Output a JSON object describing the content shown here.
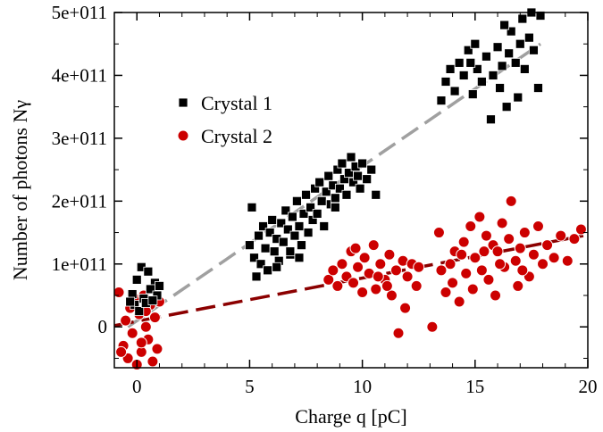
{
  "chart_data": {
    "type": "scatter",
    "title": "",
    "xlabel": "Charge q [pC]",
    "ylabel": "Number of photons Nγ",
    "xlim": [
      -1.0,
      20.0
    ],
    "ylim": [
      -65000000000.0,
      500000000000.0
    ],
    "x_ticks": [
      {
        "value": 0,
        "label": "0"
      },
      {
        "value": 5,
        "label": "5"
      },
      {
        "value": 10,
        "label": "10"
      },
      {
        "value": 15,
        "label": "15"
      },
      {
        "value": 20,
        "label": "20"
      }
    ],
    "y_ticks": [
      {
        "value": 0,
        "label": "0"
      },
      {
        "value": 100000000000.0,
        "label": "1e+011"
      },
      {
        "value": 200000000000.0,
        "label": "2e+011"
      },
      {
        "value": 300000000000.0,
        "label": "3e+011"
      },
      {
        "value": 400000000000.0,
        "label": "4e+011"
      },
      {
        "value": 500000000000.0,
        "label": "5e+011"
      }
    ],
    "grid": false,
    "legend_position": "upper-left",
    "series": [
      {
        "name": "Crystal 1",
        "marker": "square",
        "color": "#000000",
        "points": [
          [
            -0.2,
            52000000000.0
          ],
          [
            0.0,
            75000000000.0
          ],
          [
            0.2,
            95000000000.0
          ],
          [
            0.5,
            88000000000.0
          ],
          [
            0.8,
            70000000000.0
          ],
          [
            -0.1,
            35000000000.0
          ],
          [
            0.3,
            45000000000.0
          ],
          [
            0.6,
            60000000000.0
          ],
          [
            0.9,
            50000000000.0
          ],
          [
            0.1,
            25000000000.0
          ],
          [
            0.4,
            38000000000.0
          ],
          [
            0.7,
            42000000000.0
          ],
          [
            -0.3,
            40000000000.0
          ],
          [
            1.0,
            65000000000.0
          ],
          [
            5.0,
            130000000000.0
          ],
          [
            5.1,
            190000000000.0
          ],
          [
            5.2,
            110000000000.0
          ],
          [
            5.3,
            80000000000.0
          ],
          [
            5.4,
            145000000000.0
          ],
          [
            5.5,
            100000000000.0
          ],
          [
            5.6,
            160000000000.0
          ],
          [
            5.7,
            125000000000.0
          ],
          [
            5.8,
            90000000000.0
          ],
          [
            5.9,
            150000000000.0
          ],
          [
            6.0,
            170000000000.0
          ],
          [
            6.1,
            120000000000.0
          ],
          [
            6.2,
            140000000000.0
          ],
          [
            6.3,
            105000000000.0
          ],
          [
            6.4,
            165000000000.0
          ],
          [
            6.5,
            135000000000.0
          ],
          [
            6.6,
            185000000000.0
          ],
          [
            6.7,
            155000000000.0
          ],
          [
            6.8,
            115000000000.0
          ],
          [
            6.9,
            175000000000.0
          ],
          [
            7.0,
            145000000000.0
          ],
          [
            7.1,
            200000000000.0
          ],
          [
            7.2,
            160000000000.0
          ],
          [
            7.3,
            130000000000.0
          ],
          [
            7.4,
            180000000000.0
          ],
          [
            7.5,
            210000000000.0
          ],
          [
            7.6,
            150000000000.0
          ],
          [
            7.7,
            190000000000.0
          ],
          [
            7.8,
            170000000000.0
          ],
          [
            7.9,
            220000000000.0
          ],
          [
            8.0,
            180000000000.0
          ],
          [
            8.1,
            230000000000.0
          ],
          [
            8.2,
            200000000000.0
          ],
          [
            8.3,
            160000000000.0
          ],
          [
            8.4,
            215000000000.0
          ],
          [
            8.5,
            240000000000.0
          ],
          [
            8.6,
            195000000000.0
          ],
          [
            8.7,
            225000000000.0
          ],
          [
            8.8,
            205000000000.0
          ],
          [
            8.9,
            250000000000.0
          ],
          [
            9.0,
            220000000000.0
          ],
          [
            9.1,
            260000000000.0
          ],
          [
            9.2,
            235000000000.0
          ],
          [
            9.3,
            210000000000.0
          ],
          [
            9.4,
            245000000000.0
          ],
          [
            9.5,
            270000000000.0
          ],
          [
            9.6,
            230000000000.0
          ],
          [
            9.7,
            255000000000.0
          ],
          [
            9.8,
            240000000000.0
          ],
          [
            9.9,
            220000000000.0
          ],
          [
            10.0,
            260000000000.0
          ],
          [
            10.2,
            235000000000.0
          ],
          [
            10.4,
            250000000000.0
          ],
          [
            10.6,
            210000000000.0
          ],
          [
            6.2,
            95000000000.0
          ],
          [
            6.8,
            120000000000.0
          ],
          [
            7.2,
            110000000000.0
          ],
          [
            8.8,
            190000000000.0
          ],
          [
            13.5,
            360000000000.0
          ],
          [
            13.7,
            390000000000.0
          ],
          [
            13.9,
            410000000000.0
          ],
          [
            14.1,
            375000000000.0
          ],
          [
            14.3,
            420000000000.0
          ],
          [
            14.5,
            400000000000.0
          ],
          [
            14.7,
            440000000000.0
          ],
          [
            14.9,
            370000000000.0
          ],
          [
            15.1,
            410000000000.0
          ],
          [
            15.3,
            390000000000.0
          ],
          [
            15.5,
            430000000000.0
          ],
          [
            15.7,
            330000000000.0
          ],
          [
            15.8,
            400000000000.0
          ],
          [
            16.0,
            445000000000.0
          ],
          [
            16.1,
            380000000000.0
          ],
          [
            16.2,
            415000000000.0
          ],
          [
            16.4,
            350000000000.0
          ],
          [
            16.5,
            435000000000.0
          ],
          [
            16.6,
            470000000000.0
          ],
          [
            16.8,
            420000000000.0
          ],
          [
            16.9,
            365000000000.0
          ],
          [
            17.0,
            450000000000.0
          ],
          [
            17.1,
            490000000000.0
          ],
          [
            17.2,
            410000000000.0
          ],
          [
            17.4,
            460000000000.0
          ],
          [
            17.5,
            500000000000.0
          ],
          [
            17.6,
            440000000000.0
          ],
          [
            17.8,
            380000000000.0
          ],
          [
            17.9,
            495000000000.0
          ],
          [
            15.0,
            450000000000.0
          ],
          [
            14.8,
            420000000000.0
          ],
          [
            16.3,
            480000000000.0
          ]
        ]
      },
      {
        "name": "Crystal 2",
        "marker": "circle",
        "color": "#cc0000",
        "points": [
          [
            -0.8,
            55000000000.0
          ],
          [
            -0.6,
            -30000000000.0
          ],
          [
            -0.5,
            10000000000.0
          ],
          [
            -0.4,
            -50000000000.0
          ],
          [
            -0.3,
            30000000000.0
          ],
          [
            -0.2,
            -10000000000.0
          ],
          [
            -0.1,
            45000000000.0
          ],
          [
            0.0,
            -60000000000.0
          ],
          [
            0.1,
            20000000000.0
          ],
          [
            0.2,
            -40000000000.0
          ],
          [
            0.3,
            50000000000.0
          ],
          [
            0.4,
            0.0
          ],
          [
            0.5,
            -20000000000.0
          ],
          [
            0.6,
            35000000000.0
          ],
          [
            0.7,
            -55000000000.0
          ],
          [
            0.8,
            15000000000.0
          ],
          [
            0.9,
            -35000000000.0
          ],
          [
            1.0,
            40000000000.0
          ],
          [
            0.2,
            -25000000000.0
          ],
          [
            0.4,
            25000000000.0
          ],
          [
            -0.7,
            -40000000000.0
          ],
          [
            8.5,
            75000000000.0
          ],
          [
            8.7,
            90000000000.0
          ],
          [
            8.9,
            65000000000.0
          ],
          [
            9.1,
            100000000000.0
          ],
          [
            9.3,
            80000000000.0
          ],
          [
            9.5,
            120000000000.0
          ],
          [
            9.6,
            70000000000.0
          ],
          [
            9.8,
            95000000000.0
          ],
          [
            10.0,
            55000000000.0
          ],
          [
            10.1,
            110000000000.0
          ],
          [
            10.3,
            85000000000.0
          ],
          [
            10.5,
            130000000000.0
          ],
          [
            10.6,
            60000000000.0
          ],
          [
            10.8,
            100000000000.0
          ],
          [
            11.0,
            75000000000.0
          ],
          [
            11.2,
            115000000000.0
          ],
          [
            11.3,
            50000000000.0
          ],
          [
            11.5,
            90000000000.0
          ],
          [
            11.6,
            -10000000000.0
          ],
          [
            11.8,
            105000000000.0
          ],
          [
            11.9,
            30000000000.0
          ],
          [
            12.0,
            80000000000.0
          ],
          [
            12.2,
            100000000000.0
          ],
          [
            12.4,
            65000000000.0
          ],
          [
            12.5,
            95000000000.0
          ],
          [
            9.7,
            125000000000.0
          ],
          [
            11.1,
            65000000000.0
          ],
          [
            10.7,
            80000000000.0
          ],
          [
            13.4,
            150000000000.0
          ],
          [
            13.5,
            90000000000.0
          ],
          [
            13.7,
            55000000000.0
          ],
          [
            13.9,
            100000000000.0
          ],
          [
            14.0,
            70000000000.0
          ],
          [
            14.1,
            120000000000.0
          ],
          [
            14.3,
            40000000000.0
          ],
          [
            14.5,
            135000000000.0
          ],
          [
            14.6,
            85000000000.0
          ],
          [
            14.8,
            160000000000.0
          ],
          [
            14.9,
            60000000000.0
          ],
          [
            15.0,
            110000000000.0
          ],
          [
            15.2,
            175000000000.0
          ],
          [
            15.3,
            90000000000.0
          ],
          [
            15.5,
            145000000000.0
          ],
          [
            15.6,
            75000000000.0
          ],
          [
            15.8,
            130000000000.0
          ],
          [
            15.9,
            50000000000.0
          ],
          [
            16.0,
            120000000000.0
          ],
          [
            16.2,
            165000000000.0
          ],
          [
            16.3,
            95000000000.0
          ],
          [
            16.5,
            140000000000.0
          ],
          [
            16.6,
            200000000000.0
          ],
          [
            16.8,
            105000000000.0
          ],
          [
            16.9,
            65000000000.0
          ],
          [
            17.0,
            125000000000.0
          ],
          [
            17.2,
            150000000000.0
          ],
          [
            17.4,
            80000000000.0
          ],
          [
            17.6,
            115000000000.0
          ],
          [
            17.8,
            160000000000.0
          ],
          [
            18.0,
            100000000000.0
          ],
          [
            18.2,
            130000000000.0
          ],
          [
            18.5,
            110000000000.0
          ],
          [
            18.8,
            145000000000.0
          ],
          [
            19.1,
            105000000000.0
          ],
          [
            19.4,
            140000000000.0
          ],
          [
            19.7,
            155000000000.0
          ],
          [
            13.1,
            0.0
          ],
          [
            15.4,
            120000000000.0
          ],
          [
            16.1,
            100000000000.0
          ],
          [
            14.4,
            115000000000.0
          ],
          [
            17.1,
            90000000000.0
          ]
        ]
      }
    ],
    "fit_lines": [
      {
        "series": "Crystal 1",
        "color": "#a0a0a0",
        "from": [
          -0.4,
          0.0
        ],
        "to": [
          17.9,
          450000000000.0
        ]
      },
      {
        "series": "Crystal 2",
        "color": "#8b0000",
        "from": [
          -1.0,
          2000000000.0
        ],
        "to": [
          19.8,
          145000000000.0
        ]
      }
    ]
  }
}
